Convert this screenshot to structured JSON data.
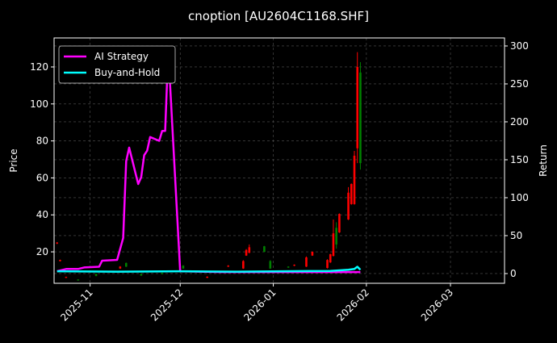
{
  "chart_data": {
    "type": "line",
    "title": "cnoption [AU2604C1168.SHF]",
    "ylabel_left": "Price",
    "ylabel_right": "Return",
    "xlim": [
      "2025-10-20",
      "2026-03-19"
    ],
    "ylim_left": [
      3,
      135.7
    ],
    "ylim_right": [
      -12.8,
      310.6
    ],
    "x_ticks": [
      "2025-11",
      "2025-12",
      "2026-01",
      "2026-02",
      "2026-03"
    ],
    "x_tick_dates": [
      "2025-11-01",
      "2025-12-01",
      "2026-01-01",
      "2026-02-01",
      "2026-03-01"
    ],
    "y_ticks_left": [
      20,
      40,
      60,
      80,
      100,
      120
    ],
    "y_ticks_right": [
      0,
      50,
      100,
      150,
      200,
      250,
      300
    ],
    "grid": true,
    "legend_position": "top-left",
    "colors": {
      "background": "#000000",
      "up": "#ff0000",
      "down": "#008000",
      "strategy": "#ff00ff",
      "buy_hold": "#00ffff",
      "grid": "#555555"
    },
    "candles": [
      {
        "date": "2025-10-21",
        "open": 24.5,
        "close": 25.0,
        "high": 25.3,
        "low": 24.2
      },
      {
        "date": "2025-10-22",
        "open": 15.0,
        "close": 15.6,
        "high": 15.8,
        "low": 14.8
      },
      {
        "date": "2025-10-24",
        "open": 6.0,
        "close": 6.4,
        "high": 6.6,
        "low": 5.8
      },
      {
        "date": "2025-10-28",
        "open": 5.0,
        "close": 4.6,
        "high": 5.2,
        "low": 4.4
      },
      {
        "date": "2025-11-03",
        "open": 8.0,
        "close": 7.0,
        "high": 8.2,
        "low": 6.8
      },
      {
        "date": "2025-11-11",
        "open": 11.0,
        "close": 12.0,
        "high": 12.3,
        "low": 10.8
      },
      {
        "date": "2025-11-13",
        "open": 14.0,
        "close": 12.0,
        "high": 14.2,
        "low": 11.8
      },
      {
        "date": "2025-11-18",
        "open": 8.0,
        "close": 7.2,
        "high": 8.3,
        "low": 7.0
      },
      {
        "date": "2025-11-25",
        "open": 8.5,
        "close": 8.0,
        "high": 8.8,
        "low": 7.8
      },
      {
        "date": "2025-12-02",
        "open": 12.5,
        "close": 11.0,
        "high": 12.8,
        "low": 10.8
      },
      {
        "date": "2025-12-05",
        "open": 9.5,
        "close": 9.0,
        "high": 9.8,
        "low": 8.8
      },
      {
        "date": "2025-12-10",
        "open": 6.0,
        "close": 6.5,
        "high": 6.8,
        "low": 5.8
      },
      {
        "date": "2025-12-17",
        "open": 12.0,
        "close": 12.5,
        "high": 12.8,
        "low": 11.8
      },
      {
        "date": "2025-12-22",
        "open": 11.0,
        "close": 15.0,
        "high": 15.5,
        "low": 10.8
      },
      {
        "date": "2025-12-23",
        "open": 18.0,
        "close": 21.0,
        "high": 21.5,
        "low": 17.8
      },
      {
        "date": "2025-12-24",
        "open": 19.5,
        "close": 22.5,
        "high": 24.0,
        "low": 19.2
      },
      {
        "date": "2025-12-29",
        "open": 23.0,
        "close": 20.0,
        "high": 23.2,
        "low": 19.8
      },
      {
        "date": "2025-12-31",
        "open": 15.0,
        "close": 11.0,
        "high": 15.5,
        "low": 10.8
      },
      {
        "date": "2026-01-06",
        "open": 12.0,
        "close": 11.5,
        "high": 12.2,
        "low": 11.3
      },
      {
        "date": "2026-01-08",
        "open": 12.5,
        "close": 13.0,
        "high": 13.2,
        "low": 12.3
      },
      {
        "date": "2026-01-12",
        "open": 12.0,
        "close": 17.0,
        "high": 17.5,
        "low": 11.8
      },
      {
        "date": "2026-01-14",
        "open": 18.0,
        "close": 20.0,
        "high": 20.2,
        "low": 17.8
      },
      {
        "date": "2026-01-19",
        "open": 11.3,
        "close": 15.6,
        "high": 16.0,
        "low": 11.0
      },
      {
        "date": "2026-01-20",
        "open": 14.3,
        "close": 18.7,
        "high": 19.0,
        "low": 14.0
      },
      {
        "date": "2026-01-21",
        "open": 17.8,
        "close": 30.0,
        "high": 37.5,
        "low": 17.5
      },
      {
        "date": "2026-01-22",
        "open": 33.0,
        "close": 24.0,
        "high": 36.0,
        "low": 21.7
      },
      {
        "date": "2026-01-23",
        "open": 30.5,
        "close": 40.5,
        "high": 40.8,
        "low": 30.2
      },
      {
        "date": "2026-01-26",
        "open": 37.5,
        "close": 52.0,
        "high": 55.0,
        "low": 37.2
      },
      {
        "date": "2026-01-27",
        "open": 45.8,
        "close": 56.7,
        "high": 57.0,
        "low": 45.5
      },
      {
        "date": "2026-01-28",
        "open": 45.8,
        "close": 72.0,
        "high": 74.6,
        "low": 45.5
      },
      {
        "date": "2026-01-29",
        "open": 76.0,
        "close": 120.0,
        "high": 128.0,
        "low": 68.0
      },
      {
        "date": "2026-01-30",
        "open": 117.0,
        "close": 68.0,
        "high": 122.6,
        "low": 64.5
      }
    ],
    "series": [
      {
        "name": "AI Strategy",
        "axis": "right",
        "points": [
          [
            "2025-10-21",
            3
          ],
          [
            "2025-10-24",
            6
          ],
          [
            "2025-10-28",
            6
          ],
          [
            "2025-10-30",
            8
          ],
          [
            "2025-11-04",
            9
          ],
          [
            "2025-11-05",
            17
          ],
          [
            "2025-11-10",
            18
          ],
          [
            "2025-11-12",
            47
          ],
          [
            "2025-11-13",
            148
          ],
          [
            "2025-11-14",
            166
          ],
          [
            "2025-11-17",
            118
          ],
          [
            "2025-11-18",
            127
          ],
          [
            "2025-11-19",
            156
          ],
          [
            "2025-11-20",
            162
          ],
          [
            "2025-11-21",
            180
          ],
          [
            "2025-11-24",
            175
          ],
          [
            "2025-11-25",
            188
          ],
          [
            "2025-11-26",
            188
          ],
          [
            "2025-11-27",
            294
          ],
          [
            "2025-12-01",
            3
          ],
          [
            "2025-12-15",
            2
          ],
          [
            "2026-01-05",
            2
          ],
          [
            "2026-01-20",
            2
          ],
          [
            "2026-01-30",
            2
          ]
        ]
      },
      {
        "name": "Buy-and-Hold",
        "axis": "right",
        "points": [
          [
            "2025-10-21",
            3
          ],
          [
            "2025-11-10",
            2.5
          ],
          [
            "2025-12-01",
            3
          ],
          [
            "2025-12-20",
            2.5
          ],
          [
            "2026-01-05",
            3
          ],
          [
            "2026-01-20",
            3.5
          ],
          [
            "2026-01-26",
            5
          ],
          [
            "2026-01-28",
            6
          ],
          [
            "2026-01-29",
            9
          ],
          [
            "2026-01-30",
            5
          ]
        ]
      }
    ]
  }
}
